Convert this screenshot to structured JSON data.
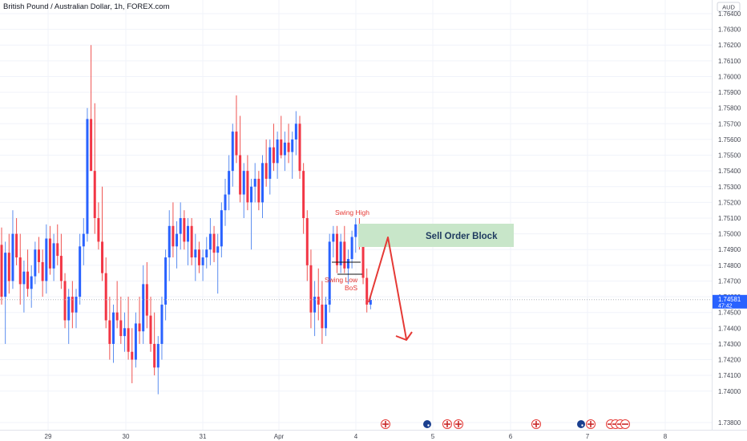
{
  "header": {
    "title": "British Pound / Australian Dollar, 1h, FOREX.com"
  },
  "price_axis": {
    "currency": "AUD",
    "last_price": "1.74581",
    "countdown": "47:42"
  },
  "annotations": {
    "swing_high": "Swing High",
    "swing_low": "Swing Low",
    "bos": "BoS",
    "sell_order_block": "Sell Order Block"
  },
  "colors": {
    "up": "#2962ff",
    "down": "#f23645",
    "up_wick": "#5b8def",
    "down_wick": "#ef5350",
    "zone": "#c8e6c9",
    "annotation_red": "#e53935",
    "axis_text": "#434651",
    "grid": "#f0f3fa"
  },
  "event_markers": [
    {
      "date": "Apr 4",
      "icon": "flag-uk-icon"
    },
    {
      "date": "Apr 5",
      "icon": "flag-au-icon"
    },
    {
      "date": "Apr 5",
      "icon": "flag-uk-icon"
    },
    {
      "date": "Apr 5",
      "icon": "flag-uk-icon"
    },
    {
      "date": "Apr 6",
      "icon": "flag-uk-icon"
    },
    {
      "date": "Apr 7",
      "icon": "flag-au-icon"
    },
    {
      "date": "Apr 7",
      "icon": "flag-uk-icon"
    }
  ],
  "chart_data": {
    "type": "candlestick",
    "title": "British Pound / Australian Dollar, 1h, FOREX.com",
    "ylim": [
      1.7375,
      1.765
    ],
    "y_ticks": [
      "1.73800",
      "1.74000",
      "1.74100",
      "1.74200",
      "1.74300",
      "1.74400",
      "1.74500",
      "1.74600",
      "1.74700",
      "1.74800",
      "1.74900",
      "1.75000",
      "1.75100",
      "1.75200",
      "1.75300",
      "1.75400",
      "1.75500",
      "1.75600",
      "1.75700",
      "1.75800",
      "1.75900",
      "1.76000",
      "1.76100",
      "1.76200",
      "1.76300",
      "1.76400"
    ],
    "x_ticks": [
      "29",
      "30",
      "31",
      "Apr",
      "4",
      "5",
      "6",
      "7",
      "8"
    ],
    "last_price": 1.74581,
    "candles": [
      [
        1.7493,
        1.7504,
        1.7455,
        1.746
      ],
      [
        1.746,
        1.7495,
        1.743,
        1.7488
      ],
      [
        1.7488,
        1.75,
        1.7462,
        1.747
      ],
      [
        1.747,
        1.7515,
        1.7465,
        1.75
      ],
      [
        1.75,
        1.751,
        1.748,
        1.7485
      ],
      [
        1.7485,
        1.75,
        1.7455,
        1.7468
      ],
      [
        1.7468,
        1.7483,
        1.745,
        1.7476
      ],
      [
        1.7476,
        1.749,
        1.746,
        1.7465
      ],
      [
        1.7465,
        1.748,
        1.7453,
        1.7473
      ],
      [
        1.7473,
        1.7495,
        1.7468,
        1.749
      ],
      [
        1.749,
        1.7498,
        1.7475,
        1.7482
      ],
      [
        1.7482,
        1.749,
        1.746,
        1.747
      ],
      [
        1.747,
        1.7506,
        1.7462,
        1.7497
      ],
      [
        1.7497,
        1.7505,
        1.7474,
        1.7478
      ],
      [
        1.7478,
        1.75,
        1.747,
        1.7494
      ],
      [
        1.7494,
        1.7506,
        1.748,
        1.7486
      ],
      [
        1.7486,
        1.75,
        1.7465,
        1.747
      ],
      [
        1.747,
        1.7475,
        1.744,
        1.7445
      ],
      [
        1.7445,
        1.7465,
        1.743,
        1.746
      ],
      [
        1.746,
        1.747,
        1.744,
        1.745
      ],
      [
        1.745,
        1.7465,
        1.744,
        1.746
      ],
      [
        1.746,
        1.75,
        1.7455,
        1.7492
      ],
      [
        1.7492,
        1.751,
        1.748,
        1.75
      ],
      [
        1.75,
        1.758,
        1.7495,
        1.7573
      ],
      [
        1.7573,
        1.762,
        1.754,
        1.754
      ],
      [
        1.754,
        1.7583,
        1.75,
        1.751
      ],
      [
        1.751,
        1.752,
        1.749,
        1.7495
      ],
      [
        1.7495,
        1.753,
        1.747,
        1.7475
      ],
      [
        1.7475,
        1.7485,
        1.744,
        1.7445
      ],
      [
        1.7445,
        1.746,
        1.742,
        1.743
      ],
      [
        1.743,
        1.7455,
        1.7418,
        1.745
      ],
      [
        1.745,
        1.747,
        1.744,
        1.7445
      ],
      [
        1.7445,
        1.746,
        1.743,
        1.7435
      ],
      [
        1.7435,
        1.745,
        1.7425,
        1.744
      ],
      [
        1.744,
        1.746,
        1.742,
        1.7425
      ],
      [
        1.7425,
        1.744,
        1.7405,
        1.742
      ],
      [
        1.742,
        1.745,
        1.7415,
        1.7443
      ],
      [
        1.7443,
        1.746,
        1.743,
        1.7438
      ],
      [
        1.7438,
        1.748,
        1.743,
        1.7468
      ],
      [
        1.7468,
        1.7482,
        1.744,
        1.7448
      ],
      [
        1.7448,
        1.746,
        1.7425,
        1.743
      ],
      [
        1.743,
        1.745,
        1.741,
        1.7415
      ],
      [
        1.7415,
        1.7435,
        1.7398,
        1.743
      ],
      [
        1.743,
        1.746,
        1.742,
        1.7455
      ],
      [
        1.7455,
        1.749,
        1.7445,
        1.7485
      ],
      [
        1.7485,
        1.7515,
        1.747,
        1.7505
      ],
      [
        1.7505,
        1.752,
        1.7485,
        1.7492
      ],
      [
        1.7492,
        1.7508,
        1.7478,
        1.75
      ],
      [
        1.75,
        1.752,
        1.749,
        1.751
      ],
      [
        1.751,
        1.7515,
        1.749,
        1.7495
      ],
      [
        1.7495,
        1.751,
        1.748,
        1.7505
      ],
      [
        1.7505,
        1.751,
        1.748,
        1.7485
      ],
      [
        1.7485,
        1.75,
        1.747,
        1.749
      ],
      [
        1.749,
        1.7495,
        1.7475,
        1.748
      ],
      [
        1.748,
        1.749,
        1.747,
        1.7485
      ],
      [
        1.7485,
        1.7498,
        1.7478,
        1.749
      ],
      [
        1.749,
        1.751,
        1.748,
        1.75
      ],
      [
        1.75,
        1.7505,
        1.7482,
        1.7488
      ],
      [
        1.7488,
        1.75,
        1.7462,
        1.7492
      ],
      [
        1.7492,
        1.752,
        1.7485,
        1.7515
      ],
      [
        1.7515,
        1.7535,
        1.7505,
        1.7525
      ],
      [
        1.7525,
        1.755,
        1.7515,
        1.754
      ],
      [
        1.754,
        1.757,
        1.753,
        1.7565
      ],
      [
        1.7565,
        1.7588,
        1.7545,
        1.755
      ],
      [
        1.755,
        1.7575,
        1.752,
        1.7525
      ],
      [
        1.7525,
        1.7545,
        1.751,
        1.754
      ],
      [
        1.754,
        1.755,
        1.7515,
        1.752
      ],
      [
        1.752,
        1.7535,
        1.749,
        1.753
      ],
      [
        1.753,
        1.7545,
        1.752,
        1.7535
      ],
      [
        1.7535,
        1.754,
        1.7515,
        1.752
      ],
      [
        1.752,
        1.755,
        1.751,
        1.7545
      ],
      [
        1.7545,
        1.756,
        1.753,
        1.7535
      ],
      [
        1.7535,
        1.756,
        1.7525,
        1.7555
      ],
      [
        1.7555,
        1.757,
        1.754,
        1.7545
      ],
      [
        1.7545,
        1.7565,
        1.7535,
        1.756
      ],
      [
        1.756,
        1.7575,
        1.7548,
        1.755
      ],
      [
        1.755,
        1.7565,
        1.754,
        1.7558
      ],
      [
        1.7558,
        1.757,
        1.7545,
        1.7552
      ],
      [
        1.7552,
        1.7565,
        1.7535,
        1.756
      ],
      [
        1.756,
        1.7578,
        1.755,
        1.757
      ],
      [
        1.757,
        1.7575,
        1.7535,
        1.754
      ],
      [
        1.754,
        1.7545,
        1.75,
        1.751
      ],
      [
        1.751,
        1.7515,
        1.747,
        1.748
      ],
      [
        1.748,
        1.749,
        1.744,
        1.745
      ],
      [
        1.745,
        1.747,
        1.7435,
        1.746
      ],
      [
        1.746,
        1.7478,
        1.7445,
        1.7455
      ],
      [
        1.7455,
        1.747,
        1.743,
        1.744
      ],
      [
        1.744,
        1.746,
        1.7435,
        1.7455
      ],
      [
        1.7455,
        1.75,
        1.745,
        1.7495
      ],
      [
        1.7495,
        1.7505,
        1.7485,
        1.75
      ],
      [
        1.75,
        1.7505,
        1.7475,
        1.748
      ],
      [
        1.748,
        1.75,
        1.7475,
        1.7495
      ],
      [
        1.7495,
        1.7505,
        1.7475,
        1.7478
      ],
      [
        1.7478,
        1.749,
        1.7468,
        1.7484
      ],
      [
        1.7484,
        1.7502,
        1.7478,
        1.7498
      ],
      [
        1.7498,
        1.751,
        1.7488,
        1.7506
      ],
      [
        1.7506,
        1.751,
        1.749,
        1.75
      ],
      [
        1.75,
        1.7505,
        1.7468,
        1.7472
      ],
      [
        1.7472,
        1.7478,
        1.745,
        1.7455
      ],
      [
        1.7455,
        1.746,
        1.7452,
        1.7458
      ]
    ]
  }
}
